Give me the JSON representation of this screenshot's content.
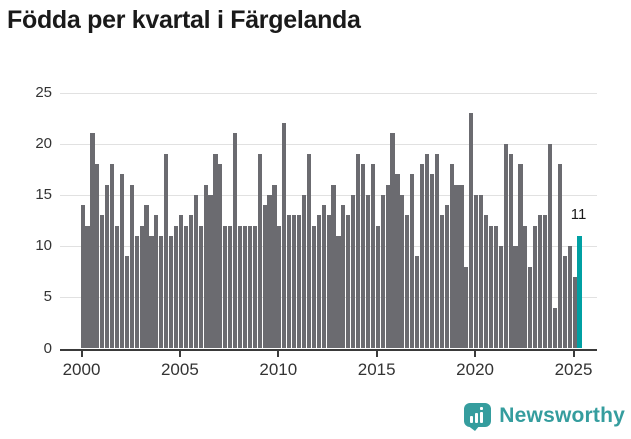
{
  "title": "Födda per kvartal i Färgelanda",
  "annotation": {
    "label": "11"
  },
  "logo": {
    "text": "Newsworthy"
  },
  "colors": {
    "bar": "#6b6b70",
    "highlight": "#00a0a3",
    "grid": "#e1e1e1",
    "axis_line": "#3a3a3a",
    "tick_text": "#333333",
    "title_text": "#1a1a1a",
    "logo_teal": "#359d9e"
  },
  "chart_data": {
    "type": "bar",
    "title": "Födda per kvartal i Färgelanda",
    "xlabel": "",
    "ylabel": "",
    "start_period": "2000-Q1",
    "end_period": "2025-Q2",
    "periods_per_year": 4,
    "values": [
      14,
      12,
      21,
      18,
      13,
      16,
      18,
      12,
      17,
      9,
      16,
      11,
      12,
      14,
      11,
      13,
      11,
      19,
      11,
      12,
      13,
      12,
      13,
      15,
      12,
      16,
      15,
      19,
      18,
      12,
      12,
      21,
      12,
      12,
      12,
      12,
      19,
      14,
      15,
      16,
      12,
      22,
      13,
      13,
      13,
      15,
      19,
      12,
      13,
      14,
      13,
      16,
      11,
      14,
      13,
      15,
      19,
      18,
      15,
      18,
      12,
      15,
      16,
      21,
      17,
      15,
      13,
      17,
      9,
      18,
      19,
      17,
      19,
      13,
      14,
      18,
      16,
      16,
      8,
      23,
      15,
      15,
      13,
      12,
      12,
      10,
      20,
      19,
      10,
      18,
      12,
      8,
      12,
      13,
      13,
      20,
      4,
      18,
      9,
      10,
      7,
      11
    ],
    "highlight_last": true,
    "highlight_value": 11,
    "y_ticks": [
      0,
      5,
      10,
      15,
      20,
      25
    ],
    "ylim": [
      0,
      25
    ],
    "x_ticks": [
      "2000",
      "2005",
      "2010",
      "2015",
      "2020",
      "2025"
    ],
    "x_tick_every_n_bars": 20,
    "grid": true,
    "legend": false
  }
}
